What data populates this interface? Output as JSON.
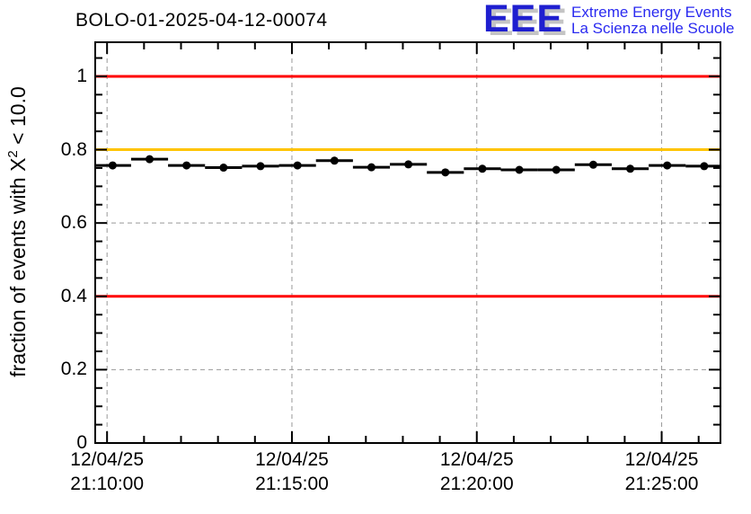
{
  "header": {
    "title": "BOLO-01-2025-04-12-00074"
  },
  "logo": {
    "letters": "EEE",
    "line1": "Extreme Energy Events",
    "line2": "La Scienza nelle Scuole",
    "color": "#1f1fd0",
    "shadow_color": "#c4c4c4",
    "text_color": "#2a2af0"
  },
  "chart_data": {
    "type": "scatter",
    "title": "BOLO-01-2025-04-12-00074",
    "ylabel": {
      "prefix": "fraction of events with X",
      "sup": "2",
      "suffix": " < 10.0"
    },
    "xlabel": "",
    "xlim_minutes_after_21_10": [
      -0.32,
      16.59
    ],
    "ylim": [
      0,
      1.093
    ],
    "grid": {
      "shown": true,
      "style": "dashed",
      "color": "#999999"
    },
    "legend": {
      "shown": false
    },
    "x_major_ticks": [
      {
        "pos_min": 0,
        "date": "12/04/25",
        "time": "21:10:00"
      },
      {
        "pos_min": 5,
        "date": "12/04/25",
        "time": "21:15:00"
      },
      {
        "pos_min": 10,
        "date": "12/04/25",
        "time": "21:20:00"
      },
      {
        "pos_min": 15,
        "date": "12/04/25",
        "time": "21:25:00"
      }
    ],
    "x_minor_step_min": 1,
    "y_major_ticks": [
      {
        "v": 0,
        "label": "0"
      },
      {
        "v": 0.2,
        "label": "0.2"
      },
      {
        "v": 0.4,
        "label": "0.4"
      },
      {
        "v": 0.6,
        "label": "0.6"
      },
      {
        "v": 0.8,
        "label": "0.8"
      },
      {
        "v": 1.0,
        "label": "1"
      }
    ],
    "y_minor_step": 0.05,
    "reference_lines": [
      {
        "y": 1.0,
        "color": "#ff0000",
        "width": 3
      },
      {
        "y": 0.8,
        "color": "#ffc400",
        "width": 3
      },
      {
        "y": 0.4,
        "color": "#ff0000",
        "width": 3
      }
    ],
    "series": [
      {
        "name": "fraction of events with chi2 < 10",
        "marker": "filled-circle",
        "color": "#000000",
        "x_err_min": 0.5,
        "points_minutes_after_21_10_vs_fraction": [
          [
            0.15,
            0.757
          ],
          [
            1.15,
            0.774
          ],
          [
            2.15,
            0.757
          ],
          [
            3.15,
            0.751
          ],
          [
            4.15,
            0.755
          ],
          [
            5.15,
            0.757
          ],
          [
            6.15,
            0.77
          ],
          [
            7.15,
            0.752
          ],
          [
            8.15,
            0.76
          ],
          [
            9.15,
            0.738
          ],
          [
            10.15,
            0.748
          ],
          [
            11.15,
            0.745
          ],
          [
            12.15,
            0.745
          ],
          [
            13.15,
            0.759
          ],
          [
            14.15,
            0.748
          ],
          [
            15.15,
            0.757
          ],
          [
            16.15,
            0.755
          ]
        ]
      }
    ]
  }
}
